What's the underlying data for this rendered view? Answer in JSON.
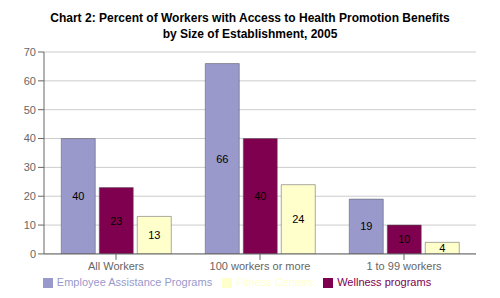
{
  "chart_data": {
    "type": "bar",
    "title": "Chart 2: Percent of Workers with Access to Health Promotion Benefits\nby Size of Establishment, 2005",
    "categories": [
      "All Workers",
      "100 workers or more",
      "1 to 99 workers"
    ],
    "series": [
      {
        "name": "Employee Assistance Programs",
        "values": [
          40,
          66,
          19
        ],
        "color": "#9999CC"
      },
      {
        "name": "Wellness programs",
        "values": [
          23,
          40,
          10
        ],
        "color": "#800050"
      },
      {
        "name": "Fitness Centers",
        "values": [
          13,
          24,
          4
        ],
        "color": "#FFFFCC"
      }
    ],
    "ylim": [
      0,
      70
    ],
    "yticks": [
      0,
      10,
      20,
      30,
      40,
      50,
      60,
      70
    ],
    "grid": true,
    "legend": "bottom",
    "data_labels": true
  }
}
